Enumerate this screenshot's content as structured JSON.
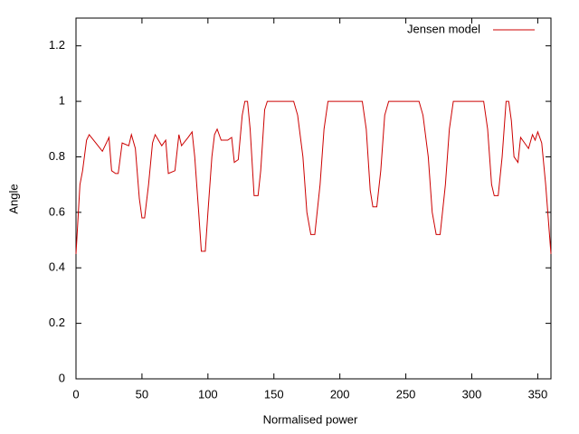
{
  "chart_data": {
    "type": "line",
    "xlabel": "Normalised power",
    "ylabel": "Angle",
    "xlim": [
      0,
      360
    ],
    "ylim": [
      0,
      1.3
    ],
    "xticks": [
      0,
      50,
      100,
      150,
      200,
      250,
      300,
      350
    ],
    "yticks": [
      0,
      0.2,
      0.4,
      0.6,
      0.8,
      1,
      1.2
    ],
    "legend": "top-right",
    "grid": false,
    "x": [
      0,
      3,
      5,
      8,
      10,
      15,
      20,
      25,
      27,
      30,
      32,
      35,
      40,
      42,
      45,
      48,
      50,
      52,
      55,
      58,
      60,
      65,
      68,
      70,
      75,
      78,
      80,
      85,
      88,
      90,
      93,
      95,
      98,
      100,
      103,
      105,
      107,
      110,
      115,
      118,
      120,
      123,
      126,
      128,
      130,
      132,
      135,
      138,
      140,
      143,
      145,
      165,
      168,
      172,
      175,
      178,
      181,
      185,
      188,
      191,
      217,
      220,
      223,
      225,
      228,
      231,
      234,
      237,
      260,
      263,
      267,
      270,
      273,
      276,
      280,
      283,
      286,
      309,
      312,
      315,
      317,
      320,
      323,
      326,
      328,
      330,
      332,
      335,
      337,
      340,
      343,
      346,
      348,
      350,
      353,
      356,
      360
    ],
    "series": [
      {
        "name": "Jensen model",
        "color": "#cc0000",
        "values": [
          0.45,
          0.7,
          0.75,
          0.86,
          0.88,
          0.85,
          0.82,
          0.87,
          0.75,
          0.74,
          0.74,
          0.85,
          0.84,
          0.88,
          0.83,
          0.65,
          0.58,
          0.58,
          0.7,
          0.85,
          0.88,
          0.84,
          0.86,
          0.74,
          0.75,
          0.88,
          0.84,
          0.87,
          0.89,
          0.8,
          0.6,
          0.46,
          0.46,
          0.6,
          0.8,
          0.88,
          0.9,
          0.86,
          0.86,
          0.87,
          0.78,
          0.79,
          0.95,
          1.0,
          1.0,
          0.9,
          0.66,
          0.66,
          0.75,
          0.97,
          1.0,
          1.0,
          0.95,
          0.8,
          0.6,
          0.52,
          0.52,
          0.7,
          0.9,
          1.0,
          1.0,
          0.9,
          0.68,
          0.62,
          0.62,
          0.75,
          0.95,
          1.0,
          1.0,
          0.95,
          0.8,
          0.6,
          0.52,
          0.52,
          0.7,
          0.9,
          1.0,
          1.0,
          0.9,
          0.7,
          0.66,
          0.66,
          0.8,
          1.0,
          1.0,
          0.93,
          0.8,
          0.78,
          0.87,
          0.85,
          0.83,
          0.88,
          0.86,
          0.89,
          0.85,
          0.7,
          0.45
        ]
      }
    ]
  }
}
